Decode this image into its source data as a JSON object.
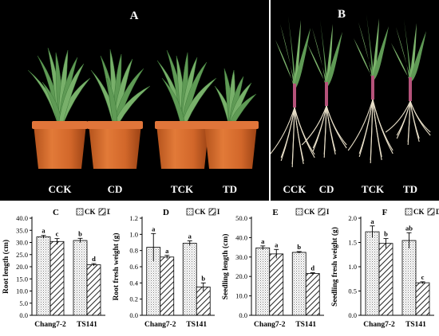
{
  "photos": {
    "A": {
      "letter": "A",
      "labels": [
        "CCK",
        "CD",
        "TCK",
        "TD"
      ]
    },
    "B": {
      "letter": "B",
      "labels": [
        "CCK",
        "CD",
        "TCK",
        "TD"
      ]
    }
  },
  "legend_series": [
    "CK",
    "D"
  ],
  "chart_data": [
    {
      "type": "bar",
      "letter": "C",
      "ylabel": "Root length (cm)",
      "categories": [
        "Chang7-2",
        "TS141"
      ],
      "ylim": [
        0,
        40
      ],
      "yticks": [
        "0.0",
        "5.0",
        "10.0",
        "15.0",
        "20.0",
        "25.0",
        "30.0",
        "35.0",
        "40.0"
      ],
      "series": [
        {
          "name": "CK",
          "values": [
            32.3,
            30.8
          ],
          "errors": [
            0.6,
            0.9
          ],
          "letters": [
            "a",
            "b"
          ]
        },
        {
          "name": "D",
          "values": [
            30.4,
            20.8
          ],
          "errors": [
            1.2,
            0.5
          ],
          "letters": [
            "c",
            "d"
          ]
        }
      ]
    },
    {
      "type": "bar",
      "letter": "D",
      "ylabel": "Root fresh weight (g)",
      "categories": [
        "Chang7-2",
        "TS141"
      ],
      "ylim": [
        0,
        1.2
      ],
      "yticks": [
        "0.0",
        "0.2",
        "0.4",
        "0.6",
        "0.8",
        "1.0",
        "1.2"
      ],
      "series": [
        {
          "name": "CK",
          "values": [
            0.84,
            0.89
          ],
          "errors": [
            0.17,
            0.03
          ],
          "letters": [
            "a",
            "a"
          ]
        },
        {
          "name": "D",
          "values": [
            0.72,
            0.35
          ],
          "errors": [
            0.02,
            0.05
          ],
          "letters": [
            "a",
            "b"
          ]
        }
      ]
    },
    {
      "type": "bar",
      "letter": "E",
      "ylabel": "Seedling length (cm)",
      "categories": [
        "Chang7-2",
        "TS141"
      ],
      "ylim": [
        0,
        50
      ],
      "yticks": [
        "0.0",
        "10.0",
        "20.0",
        "30.0",
        "40.0",
        "50.0"
      ],
      "series": [
        {
          "name": "CK",
          "values": [
            34.7,
            32.4
          ],
          "errors": [
            1.0,
            0.4
          ],
          "letters": [
            "a",
            "b"
          ]
        },
        {
          "name": "D",
          "values": [
            31.6,
            21.5
          ],
          "errors": [
            2.3,
            0.4
          ],
          "letters": [
            "a",
            "d"
          ]
        }
      ]
    },
    {
      "type": "bar",
      "letter": "F",
      "ylabel": "Seedling fresh weight (g)",
      "categories": [
        "Chang7-2",
        "TS141"
      ],
      "ylim": [
        0,
        2.0
      ],
      "yticks": [
        "0.0",
        "0.5",
        "1.0",
        "1.5",
        "2.0"
      ],
      "series": [
        {
          "name": "CK",
          "values": [
            1.72,
            1.54
          ],
          "errors": [
            0.12,
            0.16
          ],
          "letters": [
            "a",
            "ab"
          ]
        },
        {
          "name": "D",
          "values": [
            1.48,
            0.67
          ],
          "errors": [
            0.1,
            0.02
          ],
          "letters": [
            "b",
            "c"
          ]
        }
      ]
    }
  ]
}
